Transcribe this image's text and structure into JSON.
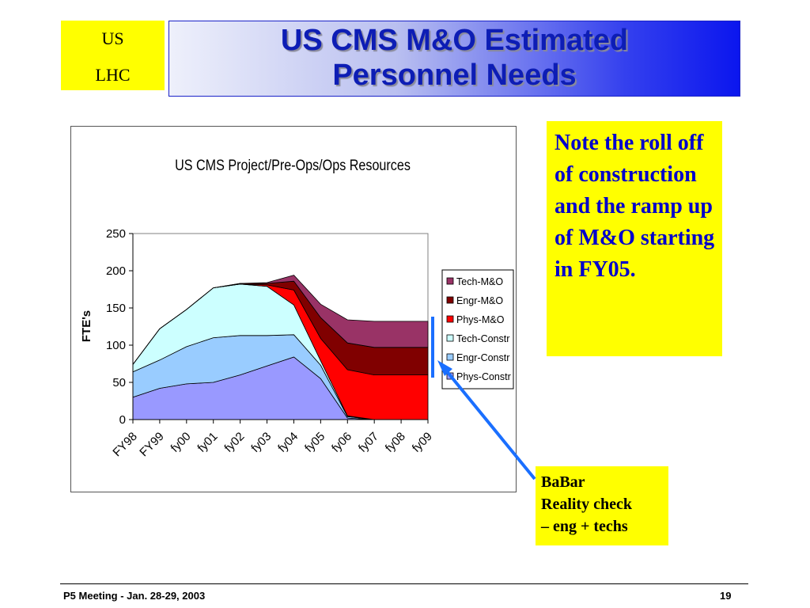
{
  "logo": {
    "line1": "US",
    "line2": "LHC"
  },
  "slide": {
    "title_line1": "US CMS M&O Estimated",
    "title_line2": "Personnel Needs"
  },
  "note": {
    "text": "Note the roll off of construction and the ramp up of M&O starting in FY05."
  },
  "babar": {
    "line1": "BaBar",
    "line2": "Reality check",
    "line3": "– eng + techs"
  },
  "footer": {
    "left": "P5 Meeting -  Jan. 28-29, 2003",
    "page": "19"
  },
  "chart_data": {
    "type": "area",
    "stacked": true,
    "title": "US CMS Project/Pre-Ops/Ops Resources",
    "ylabel": "FTE's",
    "xlabel": "",
    "ylim": [
      0,
      250
    ],
    "yticks": [
      0,
      50,
      100,
      150,
      200,
      250
    ],
    "categories": [
      "FY98",
      "FY99",
      "fy00",
      "fy01",
      "fy02",
      "fy03",
      "fy04",
      "fy05",
      "fy06",
      "fy07",
      "fy08",
      "fy09"
    ],
    "legend_position": "right",
    "grid": false,
    "series": [
      {
        "name": "Phys-Constr",
        "color": "#9999ff",
        "values": [
          30,
          42,
          48,
          50,
          60,
          72,
          84,
          55,
          2,
          0,
          0,
          0
        ]
      },
      {
        "name": "Engr-Constr",
        "color": "#99ccff",
        "values": [
          34,
          38,
          50,
          60,
          53,
          41,
          30,
          18,
          2,
          0,
          0,
          0
        ]
      },
      {
        "name": "Tech-Constr",
        "color": "#ccffff",
        "values": [
          10,
          42,
          50,
          67,
          69,
          66,
          40,
          6,
          1,
          0,
          0,
          0
        ]
      },
      {
        "name": "Phys-M&O",
        "color": "#ff0000",
        "values": [
          0,
          0,
          0,
          0,
          0,
          2,
          20,
          30,
          62,
          60,
          60,
          60
        ]
      },
      {
        "name": "Engr-M&O",
        "color": "#800000",
        "values": [
          0,
          0,
          0,
          0,
          1,
          2,
          12,
          28,
          36,
          37,
          37,
          37
        ]
      },
      {
        "name": "Tech-M&O",
        "color": "#993366",
        "values": [
          0,
          0,
          0,
          0,
          0,
          1,
          8,
          18,
          31,
          35,
          35,
          35
        ]
      }
    ]
  }
}
